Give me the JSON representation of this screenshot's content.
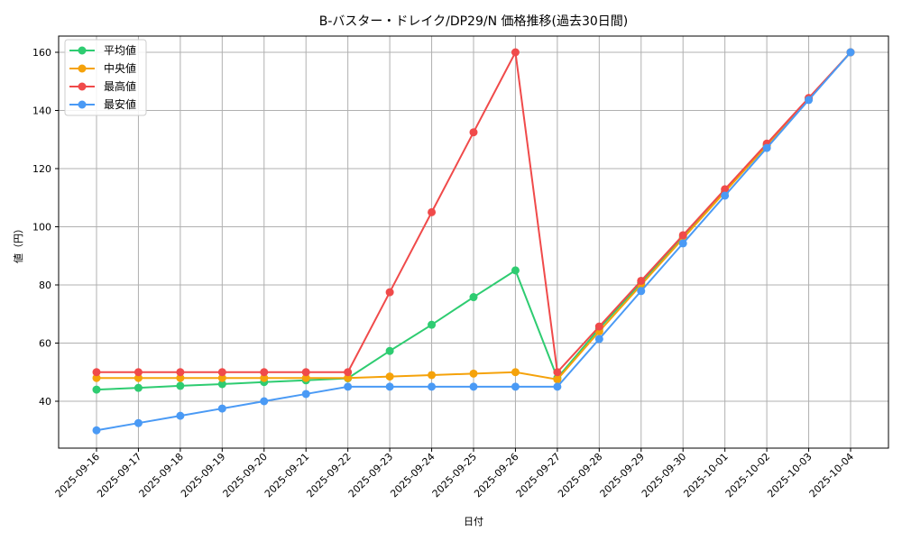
{
  "chart_data": {
    "type": "line",
    "title": "B-バスター・ドレイク/DP29/N 価格推移(過去30日間)",
    "xlabel": "日付",
    "ylabel": "値（円）",
    "ylim": [
      24,
      166
    ],
    "yticks": [
      40,
      60,
      80,
      100,
      120,
      140,
      160
    ],
    "grid": true,
    "legend_position": "upper left",
    "x": [
      "2025-09-16",
      "2025-09-17",
      "2025-09-18",
      "2025-09-19",
      "2025-09-20",
      "2025-09-21",
      "2025-09-22",
      "2025-09-23",
      "2025-09-24",
      "2025-09-25",
      "2025-09-26",
      "2025-09-27",
      "2025-09-28",
      "2025-09-29",
      "2025-09-30",
      "2025-10-01",
      "2025-10-02",
      "2025-10-03",
      "2025-10-04"
    ],
    "series": [
      {
        "name": "平均値",
        "color": "#2ecc71",
        "values": [
          44.0,
          44.6,
          45.3,
          45.9,
          46.6,
          47.2,
          47.9,
          57.3,
          66.3,
          75.8,
          85.0,
          48.0,
          65.0,
          80.7,
          96.4,
          112.1,
          127.9,
          143.9,
          160.0
        ]
      },
      {
        "name": "中央値",
        "color": "#f5a20a",
        "values": [
          48.0,
          48.0,
          48.0,
          48.0,
          48.0,
          48.0,
          48.0,
          48.5,
          49.0,
          49.5,
          50.0,
          47.5,
          64.0,
          80.0,
          96.0,
          112.0,
          128.0,
          144.0,
          160.0
        ]
      },
      {
        "name": "最高値",
        "color": "#f04a4a",
        "values": [
          50.0,
          50.0,
          50.0,
          50.0,
          50.0,
          50.0,
          50.0,
          77.5,
          105.0,
          132.5,
          160.0,
          50.0,
          65.7,
          81.4,
          97.1,
          112.9,
          128.6,
          144.3,
          160.0
        ]
      },
      {
        "name": "最安値",
        "color": "#4a9af5",
        "values": [
          30.0,
          32.5,
          35.0,
          37.5,
          40.0,
          42.5,
          45.0,
          45.0,
          45.0,
          45.0,
          45.0,
          45.0,
          61.4,
          77.9,
          94.3,
          110.7,
          127.1,
          143.6,
          160.0
        ]
      }
    ]
  }
}
